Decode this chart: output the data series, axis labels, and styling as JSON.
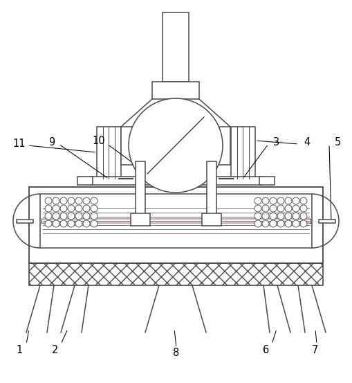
{
  "line_color": "#4a4a4a",
  "line_width": 1.1,
  "bg_color": "#ffffff",
  "fig_width": 5.09,
  "fig_height": 5.53,
  "dpi": 100
}
